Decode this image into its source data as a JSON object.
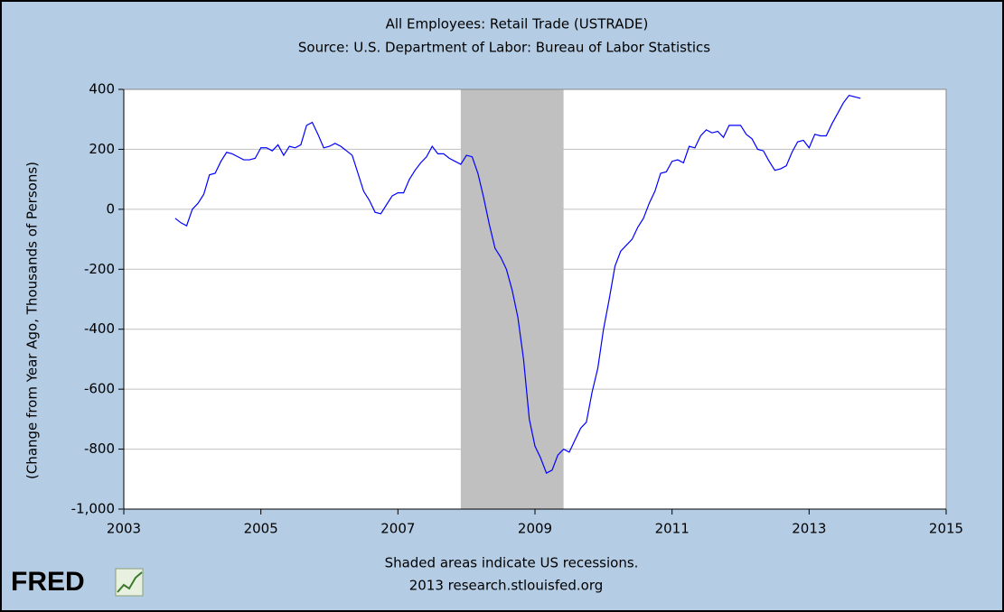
{
  "chart_data": {
    "type": "line",
    "title": "All Employees: Retail Trade (USTRADE)",
    "subtitle": "Source: U.S. Department of Labor: Bureau of Labor Statistics",
    "y_label": "(Change from Year Ago, Thousands of Persons)",
    "note": "Shaded areas indicate US recessions.",
    "credit": "2013 research.stlouisfed.org",
    "logo": "FRED",
    "xlim": [
      2003,
      2015
    ],
    "xticks": [
      2003,
      2005,
      2007,
      2009,
      2011,
      2013,
      2015
    ],
    "ylim": [
      -1000,
      400
    ],
    "yticks": [
      {
        "value": -1000,
        "label": "-1,000"
      },
      -800,
      -600,
      -400,
      -200,
      0,
      200,
      400
    ],
    "grid": true,
    "recessions": [
      [
        2007.917,
        2009.417
      ]
    ],
    "recession_color": "#c0c0c0",
    "x": [
      2003.75,
      2003.833,
      2003.917,
      2004,
      2004.083,
      2004.167,
      2004.25,
      2004.333,
      2004.417,
      2004.5,
      2004.583,
      2004.667,
      2004.75,
      2004.833,
      2004.917,
      2005,
      2005.083,
      2005.167,
      2005.25,
      2005.333,
      2005.417,
      2005.5,
      2005.583,
      2005.667,
      2005.75,
      2005.833,
      2005.917,
      2006,
      2006.083,
      2006.167,
      2006.25,
      2006.333,
      2006.417,
      2006.5,
      2006.583,
      2006.667,
      2006.75,
      2006.833,
      2006.917,
      2007,
      2007.083,
      2007.167,
      2007.25,
      2007.333,
      2007.417,
      2007.5,
      2007.583,
      2007.667,
      2007.75,
      2007.833,
      2007.917,
      2008,
      2008.083,
      2008.167,
      2008.25,
      2008.333,
      2008.417,
      2008.5,
      2008.583,
      2008.667,
      2008.75,
      2008.833,
      2008.917,
      2009,
      2009.083,
      2009.167,
      2009.25,
      2009.333,
      2009.417,
      2009.5,
      2009.583,
      2009.667,
      2009.75,
      2009.833,
      2009.917,
      2010,
      2010.083,
      2010.167,
      2010.25,
      2010.333,
      2010.417,
      2010.5,
      2010.583,
      2010.667,
      2010.75,
      2010.833,
      2010.917,
      2011,
      2011.083,
      2011.167,
      2011.25,
      2011.333,
      2011.417,
      2011.5,
      2011.583,
      2011.667,
      2011.75,
      2011.833,
      2011.917,
      2012,
      2012.083,
      2012.167,
      2012.25,
      2012.333,
      2012.417,
      2012.5,
      2012.583,
      2012.667,
      2012.75,
      2012.833,
      2012.917,
      2013,
      2013.083,
      2013.167,
      2013.25,
      2013.333,
      2013.417,
      2013.5,
      2013.583,
      2013.667,
      2013.75
    ],
    "series": [
      {
        "name": "USTRADE",
        "color": "#0000ff",
        "values": [
          -30,
          -45,
          -55,
          0,
          20,
          50,
          115,
          120,
          160,
          190,
          185,
          175,
          165,
          165,
          170,
          205,
          205,
          195,
          215,
          180,
          210,
          205,
          215,
          280,
          290,
          250,
          205,
          210,
          220,
          210,
          195,
          180,
          120,
          60,
          30,
          -10,
          -15,
          15,
          45,
          55,
          55,
          100,
          130,
          155,
          175,
          210,
          185,
          185,
          170,
          160,
          150,
          180,
          175,
          120,
          40,
          -50,
          -130,
          -160,
          -200,
          -270,
          -360,
          -500,
          -700,
          -790,
          -830,
          -880,
          -870,
          -820,
          -800,
          -810,
          -770,
          -730,
          -710,
          -610,
          -530,
          -400,
          -300,
          -190,
          -140,
          -120,
          -100,
          -60,
          -30,
          20,
          60,
          120,
          125,
          160,
          165,
          155,
          210,
          205,
          245,
          265,
          255,
          260,
          240,
          280,
          280,
          280,
          250,
          235,
          200,
          195,
          160,
          130,
          135,
          145,
          190,
          225,
          230,
          205,
          250,
          245,
          245,
          285,
          320,
          355,
          380,
          375,
          370
        ]
      }
    ]
  }
}
